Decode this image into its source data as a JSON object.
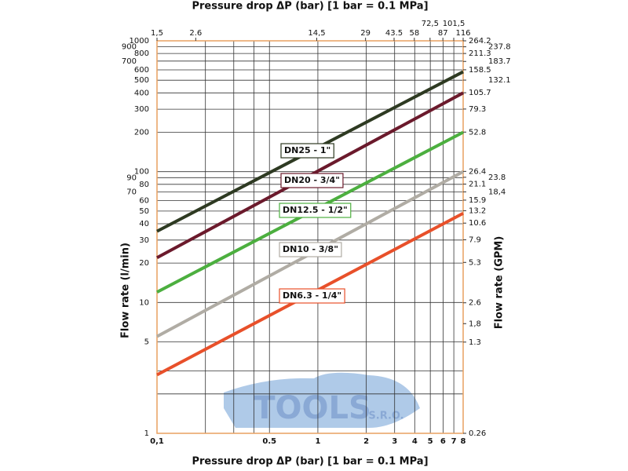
{
  "chart_data": {
    "type": "line",
    "title": "Pressure drop ΔP (bar) [1 bar = 0.1 MPa]",
    "xlabel": "Pressure drop ΔP (bar) [1 bar = 0.1 MPa]",
    "ylabel": "Flow rate (l/min)",
    "y2label": "Flow rate (GPM)",
    "watermark": "TOOLS",
    "watermark_sub": "S.R.O.",
    "log_x": true,
    "log_y": true,
    "xlim": [
      0.1,
      8
    ],
    "xticks": [
      {
        "value": 0.1,
        "label": "0,1"
      },
      0.5,
      1,
      2,
      3,
      4,
      5,
      6,
      7,
      8
    ],
    "xminor": [
      0.2,
      0.3,
      0.4
    ],
    "x2lim": [
      1.5,
      116
    ],
    "x2ticks": [
      {
        "value": 1.5,
        "label": "1,5"
      },
      2.6,
      {
        "value": 14.5,
        "label": "14,5"
      },
      29,
      43.5,
      58,
      {
        "value": 72.5,
        "label": "72,5"
      },
      87,
      {
        "value": 101.5,
        "label": "101,5"
      },
      116
    ],
    "ylim": [
      1,
      1000
    ],
    "yticks": [
      1,
      5,
      10,
      20,
      30,
      40,
      50,
      60,
      70,
      80,
      90,
      100,
      200,
      300,
      400,
      500,
      600,
      700,
      800,
      900,
      1000
    ],
    "yminor": [
      2,
      3
    ],
    "y2lim": [
      0.26,
      264.2
    ],
    "y2ticks": [
      0.26,
      1.3,
      {
        "value": 1.8,
        "label": "1,8"
      },
      2.6,
      5.3,
      7.9,
      10.6,
      13.2,
      15.9,
      {
        "value": 18.4,
        "label": "18,4"
      },
      21.1,
      23.8,
      26.4,
      52.8,
      79.3,
      105.7,
      132.1,
      158.5,
      183.7,
      211.3,
      237.8,
      264.2
    ],
    "grid": true,
    "x": [
      0.1,
      8
    ],
    "series": [
      {
        "name": "DN25 - 1\"",
        "color": "#2e3a22",
        "values": [
          35,
          580
        ]
      },
      {
        "name": "DN20 - 3/4\"",
        "color": "#6b1a2c",
        "values": [
          22,
          400
        ]
      },
      {
        "name": "DN12.5 - 1/2\"",
        "color": "#4caf3f",
        "values": [
          12,
          200
        ]
      },
      {
        "name": "DN10 - 3/8\"",
        "color": "#b0aca4",
        "values": [
          5.5,
          100
        ]
      },
      {
        "name": "DN6.3 - 1/4\"",
        "color": "#e8502a",
        "values": [
          2.8,
          48
        ]
      }
    ]
  }
}
